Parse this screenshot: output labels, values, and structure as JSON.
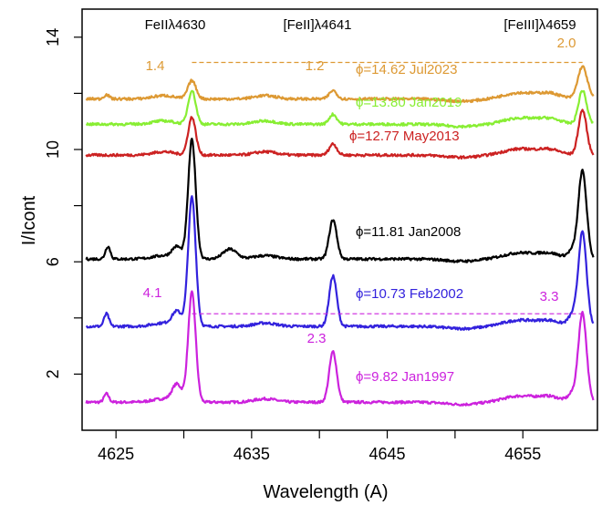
{
  "chart_data": {
    "type": "line",
    "xlabel": "Wavelength (A)",
    "ylabel": "I/Icont",
    "xlim": [
      4622.5,
      4660.5
    ],
    "ylim": [
      0,
      15
    ],
    "x_ticks": [
      4625,
      4635,
      4645,
      4655
    ],
    "x_ticks_minor": [
      4630,
      4640,
      4650
    ],
    "y_ticks": [
      2,
      6,
      10,
      14
    ],
    "y_ticks_minor": [
      4,
      8,
      12
    ],
    "line_labels": [
      "FeIIλ4630",
      "[FeII]λ4641",
      "[FeIII]λ4659"
    ],
    "grid": false,
    "series": [
      {
        "name": "ϕ=9.82 Jan1997",
        "color": "#cc22dd",
        "baseline": 1.0,
        "peaks": [
          {
            "x": 4624.3,
            "h": 0.3,
            "w": 0.18
          },
          {
            "x": 4629.5,
            "h": 0.6,
            "w": 0.35
          },
          {
            "x": 4630.6,
            "h": 3.9,
            "w": 0.28
          },
          {
            "x": 4641.0,
            "h": 1.8,
            "w": 0.28
          },
          {
            "x": 4658.7,
            "h": 0.3,
            "w": 0.35
          },
          {
            "x": 4659.4,
            "h": 3.15,
            "w": 0.3
          }
        ],
        "ratios": [
          {
            "x": 4630.6,
            "text": "4.1"
          },
          {
            "x": 4641.0,
            "text": "2.3"
          },
          {
            "x": 4659.4,
            "text": "3.3"
          }
        ]
      },
      {
        "name": "ϕ=10.73 Feb2002",
        "color": "#3322dd",
        "baseline": 3.7,
        "peaks": [
          {
            "x": 4624.3,
            "h": 0.45,
            "w": 0.18
          },
          {
            "x": 4629.5,
            "h": 0.5,
            "w": 0.35
          },
          {
            "x": 4630.6,
            "h": 4.6,
            "w": 0.28
          },
          {
            "x": 4641.0,
            "h": 1.8,
            "w": 0.28
          },
          {
            "x": 4658.7,
            "h": 0.4,
            "w": 0.35
          },
          {
            "x": 4659.4,
            "h": 3.3,
            "w": 0.3
          }
        ]
      },
      {
        "name": "ϕ=11.81 Jan2008",
        "color": "#000000",
        "baseline": 6.1,
        "peaks": [
          {
            "x": 4624.4,
            "h": 0.45,
            "w": 0.18
          },
          {
            "x": 4629.5,
            "h": 0.4,
            "w": 0.35
          },
          {
            "x": 4630.6,
            "h": 4.25,
            "w": 0.28
          },
          {
            "x": 4633.4,
            "h": 0.35,
            "w": 0.5
          },
          {
            "x": 4641.0,
            "h": 1.4,
            "w": 0.28
          },
          {
            "x": 4658.7,
            "h": 0.3,
            "w": 0.35
          },
          {
            "x": 4659.4,
            "h": 3.1,
            "w": 0.3
          }
        ]
      },
      {
        "name": "ϕ=12.77 May2013",
        "color": "#cc2222",
        "baseline": 9.8,
        "peaks": [
          {
            "x": 4630.6,
            "h": 1.35,
            "w": 0.28
          },
          {
            "x": 4641.0,
            "h": 0.4,
            "w": 0.28
          },
          {
            "x": 4659.4,
            "h": 1.6,
            "w": 0.3
          }
        ]
      },
      {
        "name": "ϕ=13.80 Jan2019",
        "color": "#88ee33",
        "baseline": 10.9,
        "peaks": [
          {
            "x": 4630.6,
            "h": 1.2,
            "w": 0.28
          },
          {
            "x": 4641.0,
            "h": 0.35,
            "w": 0.28
          },
          {
            "x": 4659.4,
            "h": 1.2,
            "w": 0.3
          }
        ]
      },
      {
        "name": "ϕ=14.62 Jul2023",
        "color": "#dd9933",
        "baseline": 11.8,
        "peaks": [
          {
            "x": 4624.3,
            "h": 0.15,
            "w": 0.2
          },
          {
            "x": 4630.6,
            "h": 0.65,
            "w": 0.3
          },
          {
            "x": 4641.0,
            "h": 0.3,
            "w": 0.28
          },
          {
            "x": 4659.4,
            "h": 1.15,
            "w": 0.35
          }
        ],
        "ratios": [
          {
            "x": 4629.5,
            "text": "1.4"
          },
          {
            "x": 4640.5,
            "text": "1.2"
          },
          {
            "x": 4659.0,
            "text": "2.0"
          }
        ]
      }
    ]
  }
}
